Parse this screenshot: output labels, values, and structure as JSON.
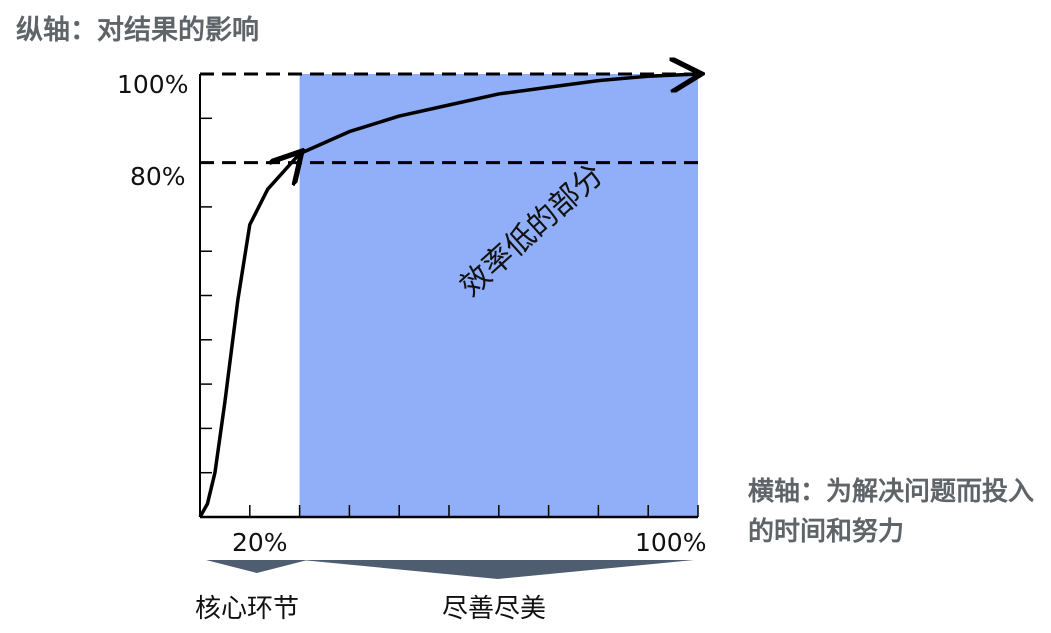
{
  "chart_data": {
    "type": "area",
    "ylabel": "纵轴：对结果的影响",
    "xlabel": "横轴：为解决问题而投入的时间和努力",
    "xlim": [
      0,
      100
    ],
    "ylim": [
      0,
      100
    ],
    "x_tick_labels": [
      "20%",
      "100%"
    ],
    "y_tick_labels": [
      "80%",
      "100%"
    ],
    "reference_lines": [
      {
        "axis": "y",
        "value": 80,
        "style": "dashed"
      },
      {
        "axis": "y",
        "value": 100,
        "style": "dashed"
      }
    ],
    "series": [
      {
        "x": [
          0,
          1.5,
          3,
          5,
          7.6,
          10,
          13.6,
          20,
          30,
          40,
          50,
          60,
          70,
          80,
          90,
          100
        ],
        "y": [
          0,
          3,
          10,
          26,
          49,
          66,
          74,
          82,
          87,
          90.5,
          93,
          95.5,
          97,
          98.5,
          99.5,
          100
        ]
      }
    ],
    "shaded_region": {
      "x_from": 20,
      "x_to": 100,
      "label": "效率低的部分",
      "color": "#91aff8"
    },
    "groups": [
      {
        "label": "核心环节",
        "x_from": 0,
        "x_to": 20
      },
      {
        "label": "尽善尽美",
        "x_from": 20,
        "x_to": 100
      }
    ]
  }
}
